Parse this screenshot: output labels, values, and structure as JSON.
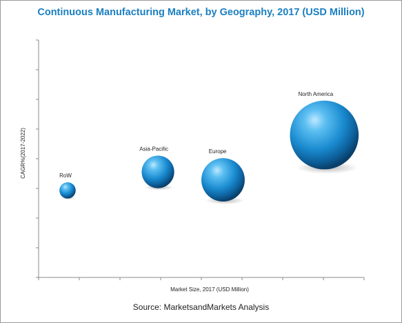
{
  "chart_data": {
    "type": "bubble",
    "title": "Continuous Manufacturing Market, by Geography, 2017 (USD Million)",
    "xlabel": "Market Size, 2017 (USD Million)",
    "ylabel": "CAGR%(2017-2022)",
    "xlim": [
      0,
      9
    ],
    "ylim": [
      0,
      9
    ],
    "grid": false,
    "series": [
      {
        "name": "RoW",
        "x": 0.8,
        "y": 3.3,
        "size": 0.45
      },
      {
        "name": "Asia-Pacific",
        "x": 3.3,
        "y": 4.0,
        "size": 0.9
      },
      {
        "name": "Europe",
        "x": 5.1,
        "y": 3.7,
        "size": 1.2
      },
      {
        "name": "North America",
        "x": 7.9,
        "y": 5.4,
        "size": 1.9
      }
    ],
    "bubble_color": "#1e8fd0"
  },
  "source": "Source: MarketsandMarkets Analysis"
}
